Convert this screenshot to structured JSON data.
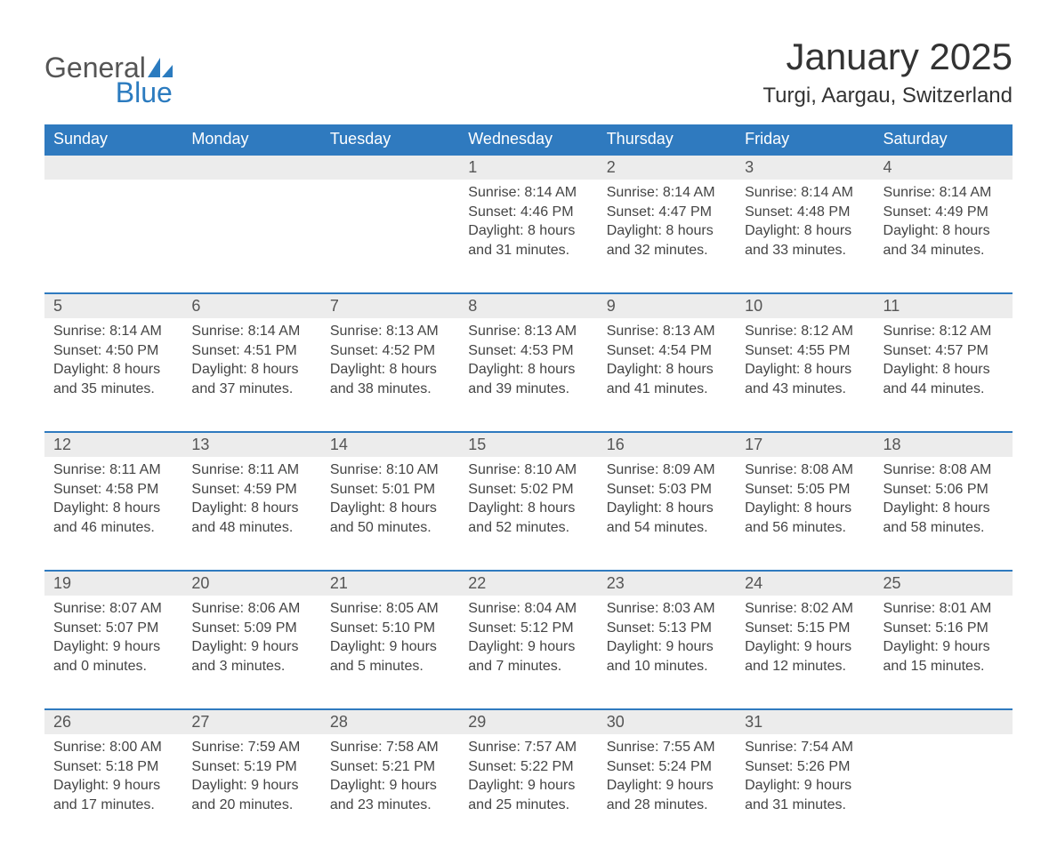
{
  "logo": {
    "general": "General",
    "blue": "Blue"
  },
  "title": "January 2025",
  "location": "Turgi, Aargau, Switzerland",
  "colors": {
    "header_bg": "#2f7abf",
    "header_text": "#ffffff",
    "day_bg": "#ececec",
    "rule": "#2f7abf",
    "text": "#444444",
    "logo_blue": "#2b7bbf"
  },
  "days_of_week": [
    "Sunday",
    "Monday",
    "Tuesday",
    "Wednesday",
    "Thursday",
    "Friday",
    "Saturday"
  ],
  "weeks": [
    [
      null,
      null,
      null,
      {
        "n": "1",
        "sunrise": "8:14 AM",
        "sunset": "4:46 PM",
        "dl": "8 hours and 31 minutes."
      },
      {
        "n": "2",
        "sunrise": "8:14 AM",
        "sunset": "4:47 PM",
        "dl": "8 hours and 32 minutes."
      },
      {
        "n": "3",
        "sunrise": "8:14 AM",
        "sunset": "4:48 PM",
        "dl": "8 hours and 33 minutes."
      },
      {
        "n": "4",
        "sunrise": "8:14 AM",
        "sunset": "4:49 PM",
        "dl": "8 hours and 34 minutes."
      }
    ],
    [
      {
        "n": "5",
        "sunrise": "8:14 AM",
        "sunset": "4:50 PM",
        "dl": "8 hours and 35 minutes."
      },
      {
        "n": "6",
        "sunrise": "8:14 AM",
        "sunset": "4:51 PM",
        "dl": "8 hours and 37 minutes."
      },
      {
        "n": "7",
        "sunrise": "8:13 AM",
        "sunset": "4:52 PM",
        "dl": "8 hours and 38 minutes."
      },
      {
        "n": "8",
        "sunrise": "8:13 AM",
        "sunset": "4:53 PM",
        "dl": "8 hours and 39 minutes."
      },
      {
        "n": "9",
        "sunrise": "8:13 AM",
        "sunset": "4:54 PM",
        "dl": "8 hours and 41 minutes."
      },
      {
        "n": "10",
        "sunrise": "8:12 AM",
        "sunset": "4:55 PM",
        "dl": "8 hours and 43 minutes."
      },
      {
        "n": "11",
        "sunrise": "8:12 AM",
        "sunset": "4:57 PM",
        "dl": "8 hours and 44 minutes."
      }
    ],
    [
      {
        "n": "12",
        "sunrise": "8:11 AM",
        "sunset": "4:58 PM",
        "dl": "8 hours and 46 minutes."
      },
      {
        "n": "13",
        "sunrise": "8:11 AM",
        "sunset": "4:59 PM",
        "dl": "8 hours and 48 minutes."
      },
      {
        "n": "14",
        "sunrise": "8:10 AM",
        "sunset": "5:01 PM",
        "dl": "8 hours and 50 minutes."
      },
      {
        "n": "15",
        "sunrise": "8:10 AM",
        "sunset": "5:02 PM",
        "dl": "8 hours and 52 minutes."
      },
      {
        "n": "16",
        "sunrise": "8:09 AM",
        "sunset": "5:03 PM",
        "dl": "8 hours and 54 minutes."
      },
      {
        "n": "17",
        "sunrise": "8:08 AM",
        "sunset": "5:05 PM",
        "dl": "8 hours and 56 minutes."
      },
      {
        "n": "18",
        "sunrise": "8:08 AM",
        "sunset": "5:06 PM",
        "dl": "8 hours and 58 minutes."
      }
    ],
    [
      {
        "n": "19",
        "sunrise": "8:07 AM",
        "sunset": "5:07 PM",
        "dl": "9 hours and 0 minutes."
      },
      {
        "n": "20",
        "sunrise": "8:06 AM",
        "sunset": "5:09 PM",
        "dl": "9 hours and 3 minutes."
      },
      {
        "n": "21",
        "sunrise": "8:05 AM",
        "sunset": "5:10 PM",
        "dl": "9 hours and 5 minutes."
      },
      {
        "n": "22",
        "sunrise": "8:04 AM",
        "sunset": "5:12 PM",
        "dl": "9 hours and 7 minutes."
      },
      {
        "n": "23",
        "sunrise": "8:03 AM",
        "sunset": "5:13 PM",
        "dl": "9 hours and 10 minutes."
      },
      {
        "n": "24",
        "sunrise": "8:02 AM",
        "sunset": "5:15 PM",
        "dl": "9 hours and 12 minutes."
      },
      {
        "n": "25",
        "sunrise": "8:01 AM",
        "sunset": "5:16 PM",
        "dl": "9 hours and 15 minutes."
      }
    ],
    [
      {
        "n": "26",
        "sunrise": "8:00 AM",
        "sunset": "5:18 PM",
        "dl": "9 hours and 17 minutes."
      },
      {
        "n": "27",
        "sunrise": "7:59 AM",
        "sunset": "5:19 PM",
        "dl": "9 hours and 20 minutes."
      },
      {
        "n": "28",
        "sunrise": "7:58 AM",
        "sunset": "5:21 PM",
        "dl": "9 hours and 23 minutes."
      },
      {
        "n": "29",
        "sunrise": "7:57 AM",
        "sunset": "5:22 PM",
        "dl": "9 hours and 25 minutes."
      },
      {
        "n": "30",
        "sunrise": "7:55 AM",
        "sunset": "5:24 PM",
        "dl": "9 hours and 28 minutes."
      },
      {
        "n": "31",
        "sunrise": "7:54 AM",
        "sunset": "5:26 PM",
        "dl": "9 hours and 31 minutes."
      },
      null
    ]
  ],
  "labels": {
    "sunrise": "Sunrise: ",
    "sunset": "Sunset: ",
    "daylight": "Daylight: "
  }
}
